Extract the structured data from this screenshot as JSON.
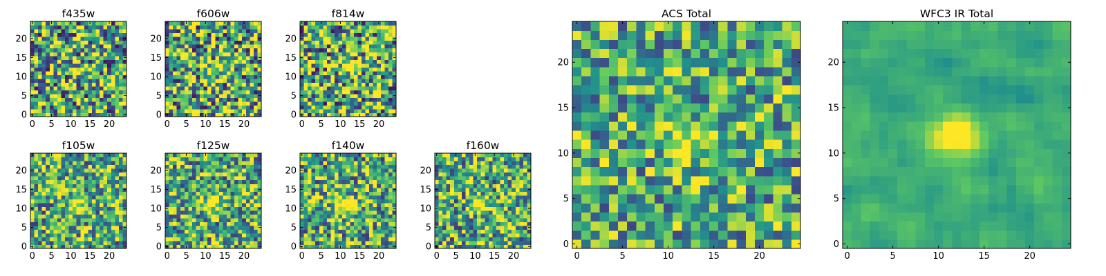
{
  "figure": {
    "colormap": {
      "name": "viridis",
      "stops": [
        "#440154",
        "#3b528b",
        "#21918c",
        "#5ec962",
        "#fde725"
      ]
    }
  },
  "chart_data": [
    {
      "type": "heatmap",
      "title": "f435w",
      "grid_size": 25,
      "hotspot": [
        12,
        12
      ],
      "hot_strength": 0.15,
      "noise": 0.55,
      "seed": 11,
      "xticks": [
        0,
        5,
        10,
        15,
        20
      ],
      "yticks": [
        0,
        5,
        10,
        15,
        20
      ],
      "xlim": [
        0,
        24
      ],
      "ylim": [
        0,
        24
      ]
    },
    {
      "type": "heatmap",
      "title": "f606w",
      "grid_size": 25,
      "hotspot": [
        13,
        12
      ],
      "hot_strength": 0.35,
      "noise": 0.55,
      "seed": 23,
      "xticks": [
        0,
        5,
        10,
        15,
        20
      ],
      "yticks": [
        0,
        5,
        10,
        15,
        20
      ],
      "xlim": [
        0,
        24
      ],
      "ylim": [
        0,
        24
      ]
    },
    {
      "type": "heatmap",
      "title": "f814w",
      "grid_size": 25,
      "hotspot": [
        13,
        12
      ],
      "hot_strength": 0.35,
      "noise": 0.55,
      "seed": 37,
      "xticks": [
        0,
        5,
        10,
        15,
        20
      ],
      "yticks": [
        0,
        5,
        10,
        15,
        20
      ],
      "xlim": [
        0,
        24
      ],
      "ylim": [
        0,
        24
      ]
    },
    {
      "type": "heatmap",
      "title": "f105w",
      "grid_size": 25,
      "hotspot": [
        12,
        11
      ],
      "hot_strength": 0.45,
      "noise": 0.45,
      "seed": 41,
      "xticks": [
        0,
        5,
        10,
        15,
        20
      ],
      "yticks": [
        0,
        5,
        10,
        15,
        20
      ],
      "xlim": [
        0,
        24
      ],
      "ylim": [
        0,
        24
      ]
    },
    {
      "type": "heatmap",
      "title": "f125w",
      "grid_size": 25,
      "hotspot": [
        12,
        11
      ],
      "hot_strength": 0.45,
      "noise": 0.45,
      "seed": 53,
      "xticks": [
        0,
        5,
        10,
        15,
        20
      ],
      "yticks": [
        0,
        5,
        10,
        15,
        20
      ],
      "xlim": [
        0,
        24
      ],
      "ylim": [
        0,
        24
      ]
    },
    {
      "type": "heatmap",
      "title": "f140w",
      "grid_size": 25,
      "hotspot": [
        12,
        11
      ],
      "hot_strength": 0.45,
      "noise": 0.45,
      "seed": 67,
      "xticks": [
        0,
        5,
        10,
        15,
        20
      ],
      "yticks": [
        0,
        5,
        10,
        15,
        20
      ],
      "xlim": [
        0,
        24
      ],
      "ylim": [
        0,
        24
      ]
    },
    {
      "type": "heatmap",
      "title": "f160w",
      "grid_size": 25,
      "hotspot": [
        12,
        11
      ],
      "hot_strength": 0.45,
      "noise": 0.45,
      "seed": 79,
      "xticks": [
        0,
        5,
        10,
        15,
        20
      ],
      "yticks": [
        0,
        5,
        10,
        15,
        20
      ],
      "xlim": [
        0,
        24
      ],
      "ylim": [
        0,
        24
      ]
    },
    {
      "type": "heatmap",
      "title": "ACS Total",
      "grid_size": 25,
      "hotspot": [
        12,
        11
      ],
      "hot_strength": 0.4,
      "noise": 0.4,
      "seed": 89,
      "xticks": [
        0,
        5,
        10,
        15,
        20
      ],
      "yticks": [
        0,
        5,
        10,
        15,
        20
      ],
      "xlim": [
        0,
        24
      ],
      "ylim": [
        0,
        24
      ]
    },
    {
      "type": "heatmap",
      "title": "WFC3 IR Total",
      "grid_size": 25,
      "hotspot": [
        12,
        12
      ],
      "hot_strength": 0.5,
      "noise": 0.22,
      "seed": 97,
      "xticks": [
        0,
        5,
        10,
        15,
        20
      ],
      "yticks": [
        0,
        5,
        10,
        15,
        20
      ],
      "xlim": [
        0,
        24
      ],
      "ylim": [
        0,
        24
      ]
    }
  ]
}
